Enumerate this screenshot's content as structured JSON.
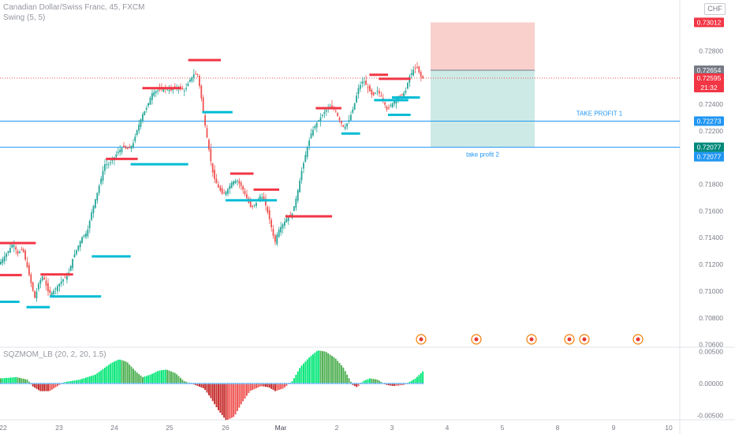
{
  "header": {
    "title": "Canadian Dollar/Swiss Franc, 45, FXCM",
    "swing_label": "Swing (5, 5)",
    "currency": "CHF"
  },
  "indicator": {
    "label": "SQZMOM_LB (20, 2, 20, 1.5)"
  },
  "colors": {
    "up": "#26a69a",
    "down": "#ef5350",
    "swing_high": "#f23645",
    "swing_low": "#00bcd4",
    "hline": "#2196f3",
    "sl_zone": "#f9d0cc",
    "tp_zone": "#cdeae6",
    "mom_up_strong": "#00e676",
    "mom_up_weak": "#4caf50",
    "mom_dn_strong": "#c62828",
    "mom_dn_weak": "#ef5350",
    "zero_dot": "#64b5f6"
  },
  "chart_data": {
    "type": "candlestick",
    "symbol": "CADCHF",
    "timeframe": "45",
    "price_axis": {
      "ticks": [
        "0.72800",
        "0.72600",
        "0.72400",
        "0.72200",
        "0.72000",
        "0.71800",
        "0.71600",
        "0.71400",
        "0.71200",
        "0.71000",
        "0.70800",
        "0.70600"
      ],
      "range": [
        0.7058,
        0.7318
      ]
    },
    "time_axis": {
      "ticks": [
        "22",
        "23",
        "24",
        "25",
        "26",
        "Mar",
        "2",
        "3",
        "4",
        "5",
        "8",
        "9",
        "10"
      ]
    },
    "price_labels": [
      {
        "value": 0.73012,
        "text": "0.73012",
        "color": "#f23645"
      },
      {
        "value": 0.72654,
        "text": "0.72654",
        "color": "#787b86"
      },
      {
        "value": 0.72595,
        "text": "0.72595",
        "sub": "21:32",
        "color": "#f23645"
      },
      {
        "value": 0.72273,
        "text": "0.72273",
        "color": "#2196f3"
      },
      {
        "value": 0.72077,
        "text": "0.72077",
        "color": "#00897b"
      },
      {
        "value": 0.72077,
        "text": "0.72077",
        "color": "#2196f3"
      }
    ],
    "hlines": [
      {
        "value": 0.72273,
        "label": "TAKE PROFIT 1"
      },
      {
        "value": 0.72077,
        "label": "take profit 2"
      }
    ],
    "position": {
      "entry": 0.72654,
      "stop": 0.73012,
      "target": 0.72077,
      "side": "short"
    },
    "last_price": 0.72595,
    "swing_highs": [
      {
        "from": "21 20:00",
        "to": "22 14:00",
        "value": 0.7136
      },
      {
        "from": "21 08:00",
        "to": "22 08:00",
        "value": 0.7112
      },
      {
        "from": "22 16:00",
        "to": "23 06:00",
        "value": 0.71125
      },
      {
        "from": "23 20:00",
        "to": "24 10:00",
        "value": 0.7199
      },
      {
        "from": "24 12:00",
        "to": "25 05:00",
        "value": 0.7252
      },
      {
        "from": "25 08:00",
        "to": "25 22:00",
        "value": 0.7273
      },
      {
        "from": "26 02:00",
        "to": "26 12:00",
        "value": 0.7188
      },
      {
        "from": "26 12:00",
        "to": "26 23:00",
        "value": 0.7176
      },
      {
        "from": "27 02:00",
        "to": "27 22:00",
        "value": 0.7156
      },
      {
        "from": "1 15:00",
        "to": "2 02:00",
        "value": 0.7237
      },
      {
        "from": "2 14:00",
        "to": "2 22:00",
        "value": 0.7262
      },
      {
        "from": "2 18:00",
        "to": "3 08:00",
        "value": 0.7259
      }
    ],
    "swing_lows": [
      {
        "from": "21 08:00",
        "to": "22 07:00",
        "value": 0.7092
      },
      {
        "from": "22 10:00",
        "to": "22 20:00",
        "value": 0.7088
      },
      {
        "from": "22 20:00",
        "to": "23 18:00",
        "value": 0.7096
      },
      {
        "from": "23 14:00",
        "to": "24 07:00",
        "value": 0.7126
      },
      {
        "from": "24 07:00",
        "to": "25 08:00",
        "value": 0.7195
      },
      {
        "from": "25 14:00",
        "to": "26 03:00",
        "value": 0.7234
      },
      {
        "from": "26 00:00",
        "to": "26 22:00",
        "value": 0.7168
      },
      {
        "from": "27 12:00",
        "to": "1 10:00",
        "value": 0.7118
      },
      {
        "from": "2 02:00",
        "to": "2 10:00",
        "value": 0.7218
      },
      {
        "from": "2 16:00",
        "to": "3 07:00",
        "value": 0.7243
      },
      {
        "from": "2 22:00",
        "to": "3 08:00",
        "value": 0.7232
      },
      {
        "from": "3 00:00",
        "to": "3 12:00",
        "value": 0.7245
      }
    ],
    "path": [
      [
        0,
        0.712
      ],
      [
        6,
        0.7125
      ],
      [
        12,
        0.713
      ],
      [
        18,
        0.7136
      ],
      [
        24,
        0.7128
      ],
      [
        30,
        0.7132
      ],
      [
        36,
        0.7118
      ],
      [
        42,
        0.7103
      ],
      [
        46,
        0.7094
      ],
      [
        50,
        0.7105
      ],
      [
        56,
        0.7112
      ],
      [
        62,
        0.71
      ],
      [
        66,
        0.7098
      ],
      [
        72,
        0.7102
      ],
      [
        80,
        0.7108
      ],
      [
        88,
        0.7112
      ],
      [
        94,
        0.7125
      ],
      [
        100,
        0.7133
      ],
      [
        106,
        0.7141
      ],
      [
        112,
        0.7144
      ],
      [
        118,
        0.716
      ],
      [
        124,
        0.7172
      ],
      [
        130,
        0.7185
      ],
      [
        134,
        0.7195
      ],
      [
        140,
        0.7195
      ],
      [
        146,
        0.72
      ],
      [
        152,
        0.7205
      ],
      [
        158,
        0.7208
      ],
      [
        164,
        0.7206
      ],
      [
        170,
        0.721
      ],
      [
        176,
        0.7222
      ],
      [
        182,
        0.7232
      ],
      [
        188,
        0.7238
      ],
      [
        194,
        0.7248
      ],
      [
        200,
        0.725
      ],
      [
        206,
        0.7251
      ],
      [
        212,
        0.7252
      ],
      [
        218,
        0.725
      ],
      [
        224,
        0.7253
      ],
      [
        230,
        0.7252
      ],
      [
        236,
        0.725
      ],
      [
        242,
        0.7258
      ],
      [
        248,
        0.7263
      ],
      [
        252,
        0.7262
      ],
      [
        256,
        0.7248
      ],
      [
        260,
        0.723
      ],
      [
        264,
        0.7215
      ],
      [
        268,
        0.72
      ],
      [
        272,
        0.7186
      ],
      [
        278,
        0.7178
      ],
      [
        284,
        0.7172
      ],
      [
        290,
        0.7176
      ],
      [
        296,
        0.7182
      ],
      [
        302,
        0.7183
      ],
      [
        308,
        0.7178
      ],
      [
        314,
        0.717
      ],
      [
        320,
        0.7162
      ],
      [
        326,
        0.7166
      ],
      [
        332,
        0.7172
      ],
      [
        338,
        0.7165
      ],
      [
        344,
        0.7152
      ],
      [
        350,
        0.7136
      ],
      [
        354,
        0.7145
      ],
      [
        360,
        0.715
      ],
      [
        366,
        0.7155
      ],
      [
        372,
        0.7158
      ],
      [
        378,
        0.7172
      ],
      [
        384,
        0.719
      ],
      [
        390,
        0.7205
      ],
      [
        396,
        0.7218
      ],
      [
        402,
        0.7225
      ],
      [
        408,
        0.723
      ],
      [
        414,
        0.7235
      ],
      [
        420,
        0.7238
      ],
      [
        426,
        0.7236
      ],
      [
        432,
        0.7228
      ],
      [
        438,
        0.7222
      ],
      [
        444,
        0.7228
      ],
      [
        450,
        0.7238
      ],
      [
        456,
        0.7252
      ],
      [
        462,
        0.7258
      ],
      [
        468,
        0.7252
      ],
      [
        474,
        0.7246
      ],
      [
        480,
        0.725
      ],
      [
        486,
        0.7245
      ],
      [
        492,
        0.7236
      ],
      [
        498,
        0.724
      ],
      [
        504,
        0.7244
      ],
      [
        510,
        0.7246
      ],
      [
        516,
        0.725
      ],
      [
        520,
        0.726
      ],
      [
        526,
        0.7266
      ],
      [
        530,
        0.7268
      ],
      [
        534,
        0.7262
      ],
      [
        536,
        0.72595
      ]
    ],
    "momentum": {
      "range": [
        -0.0052,
        0.0052
      ],
      "ticks": [
        "0.00500",
        "0.00000",
        "-0.00500"
      ],
      "path": [
        [
          0,
          0.0008
        ],
        [
          20,
          0.001
        ],
        [
          34,
          0.0006
        ],
        [
          40,
          -0.0004
        ],
        [
          50,
          -0.0012
        ],
        [
          62,
          -0.0012
        ],
        [
          72,
          -0.0004
        ],
        [
          80,
          0.0002
        ],
        [
          100,
          0.0006
        ],
        [
          120,
          0.0014
        ],
        [
          140,
          0.0032
        ],
        [
          150,
          0.0038
        ],
        [
          160,
          0.0034
        ],
        [
          172,
          0.0018
        ],
        [
          180,
          0.001
        ],
        [
          190,
          0.0014
        ],
        [
          200,
          0.002
        ],
        [
          210,
          0.0022
        ],
        [
          222,
          0.0016
        ],
        [
          232,
          0.0004
        ],
        [
          246,
          -0.0002
        ],
        [
          258,
          -0.0008
        ],
        [
          266,
          -0.0022
        ],
        [
          276,
          -0.0042
        ],
        [
          286,
          -0.0058
        ],
        [
          296,
          -0.0052
        ],
        [
          306,
          -0.003
        ],
        [
          316,
          -0.0012
        ],
        [
          330,
          -0.0004
        ],
        [
          340,
          -0.0006
        ],
        [
          348,
          -0.0012
        ],
        [
          358,
          -0.0008
        ],
        [
          370,
          0.0004
        ],
        [
          380,
          0.0026
        ],
        [
          392,
          0.0042
        ],
        [
          402,
          0.0052
        ],
        [
          412,
          0.005
        ],
        [
          424,
          0.004
        ],
        [
          434,
          0.0026
        ],
        [
          446,
          -0.0002
        ],
        [
          452,
          -0.0006
        ],
        [
          460,
          0.0004
        ],
        [
          468,
          0.0008
        ],
        [
          478,
          0.0006
        ],
        [
          488,
          -0.0002
        ],
        [
          498,
          -0.0004
        ],
        [
          512,
          -0.0002
        ],
        [
          526,
          0.0008
        ],
        [
          536,
          0.002
        ]
      ]
    },
    "events_flag_count": 6
  }
}
